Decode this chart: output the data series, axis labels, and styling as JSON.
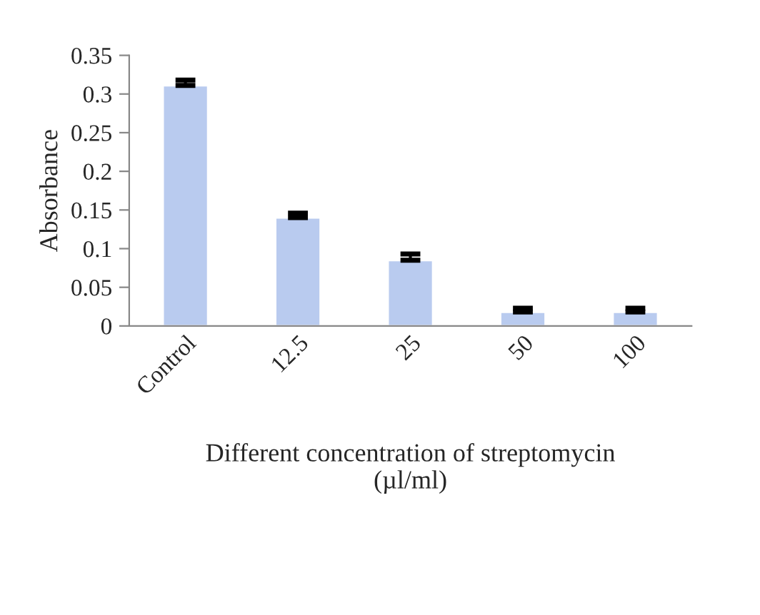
{
  "chart_data": {
    "type": "bar",
    "xlabel": "Different concentration of streptomycin\n(µl/ml)",
    "ylabel": "Absorbance",
    "categories": [
      "Control",
      "12.5",
      "25",
      "50",
      "100"
    ],
    "values": [
      0.311,
      0.14,
      0.085,
      0.018,
      0.018
    ],
    "errors": [
      [
        0.311,
        0.318
      ],
      [
        0.14,
        0.146
      ],
      [
        0.085,
        0.093
      ],
      [
        0.018,
        0.023
      ],
      [
        0.018,
        0.023
      ]
    ],
    "color": "#b9cbef",
    "ylim": [
      0,
      0.35
    ],
    "yticks": [
      {
        "value": 0,
        "label": "0"
      },
      {
        "value": 0.05,
        "label": "0.05"
      },
      {
        "value": 0.1,
        "label": "0.1"
      },
      {
        "value": 0.15,
        "label": "0.15"
      },
      {
        "value": 0.2,
        "label": "0.2"
      },
      {
        "value": 0.25,
        "label": "0.25"
      },
      {
        "value": 0.3,
        "label": "0.3"
      },
      {
        "value": 0.35,
        "label": "0.35"
      }
    ],
    "grid": false,
    "legend": false
  }
}
